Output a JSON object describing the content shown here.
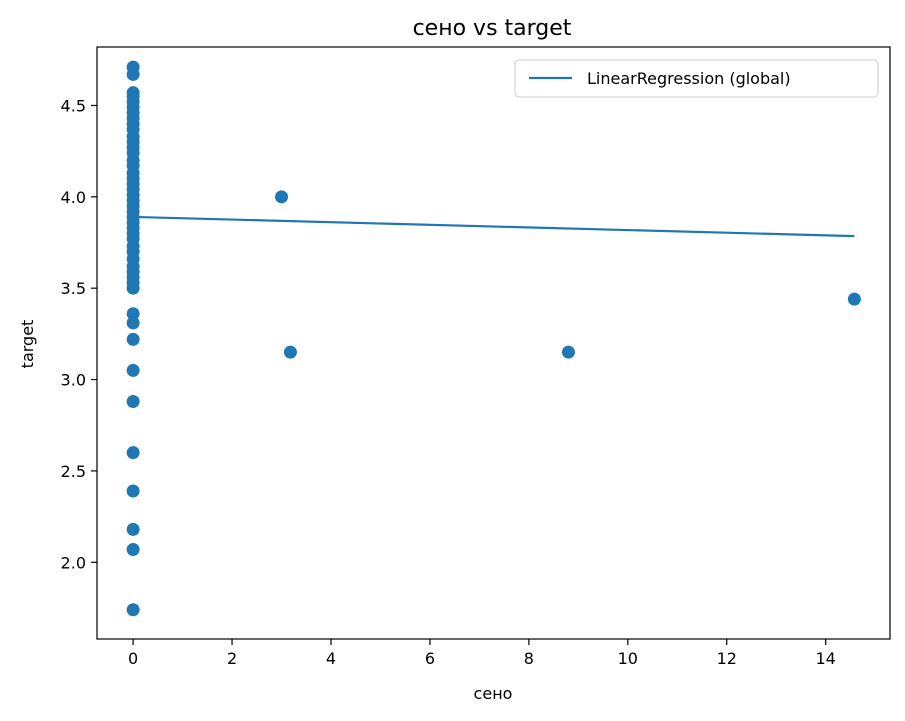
{
  "chart_data": {
    "type": "scatter",
    "title": "сено vs target",
    "xlabel": "сено",
    "ylabel": "target",
    "xlim": [
      -0.73,
      15.3
    ],
    "ylim": [
      1.58,
      4.82
    ],
    "xticks": [
      0,
      2,
      4,
      6,
      8,
      10,
      12,
      14
    ],
    "yticks": [
      2.0,
      2.5,
      3.0,
      3.5,
      4.0,
      4.5
    ],
    "xtick_labels": [
      "0",
      "2",
      "4",
      "6",
      "8",
      "10",
      "12",
      "14"
    ],
    "ytick_labels": [
      "2.0",
      "2.5",
      "3.0",
      "3.5",
      "4.0",
      "4.5"
    ],
    "grid": false,
    "legend_position": "top-right",
    "series": [
      {
        "kind": "scatter",
        "color": "#1f77b4",
        "points": [
          [
            0,
            4.71
          ],
          [
            0,
            4.67
          ],
          [
            0,
            4.57
          ],
          [
            0,
            4.55
          ],
          [
            0,
            4.52
          ],
          [
            0,
            4.49
          ],
          [
            0,
            4.46
          ],
          [
            0,
            4.43
          ],
          [
            0,
            4.4
          ],
          [
            0,
            4.37
          ],
          [
            0,
            4.33
          ],
          [
            0,
            4.3
          ],
          [
            0,
            4.27
          ],
          [
            0,
            4.24
          ],
          [
            0,
            4.2
          ],
          [
            0,
            4.17
          ],
          [
            0,
            4.13
          ],
          [
            0,
            4.1
          ],
          [
            0,
            4.07
          ],
          [
            0,
            4.04
          ],
          [
            0,
            4.01
          ],
          [
            0,
            3.98
          ],
          [
            0,
            3.95
          ],
          [
            0,
            3.92
          ],
          [
            0,
            3.89
          ],
          [
            0,
            3.86
          ],
          [
            0,
            3.83
          ],
          [
            0,
            3.8
          ],
          [
            0,
            3.77
          ],
          [
            0,
            3.73
          ],
          [
            0,
            3.7
          ],
          [
            0,
            3.66
          ],
          [
            0,
            3.62
          ],
          [
            0,
            3.59
          ],
          [
            0,
            3.56
          ],
          [
            0,
            3.53
          ],
          [
            0,
            3.5
          ],
          [
            0,
            3.36
          ],
          [
            0,
            3.31
          ],
          [
            0,
            3.22
          ],
          [
            0,
            3.05
          ],
          [
            0,
            2.88
          ],
          [
            0,
            2.6
          ],
          [
            0,
            2.39
          ],
          [
            0,
            2.18
          ],
          [
            0,
            2.07
          ],
          [
            0,
            1.74
          ],
          [
            3.0,
            4.0
          ],
          [
            3.18,
            3.15
          ],
          [
            8.8,
            3.15
          ],
          [
            14.58,
            3.44
          ]
        ]
      },
      {
        "kind": "line",
        "name": "LinearRegression (global)",
        "color": "#1f77b4",
        "x": [
          0,
          14.58
        ],
        "y": [
          3.89,
          3.785
        ]
      }
    ]
  }
}
